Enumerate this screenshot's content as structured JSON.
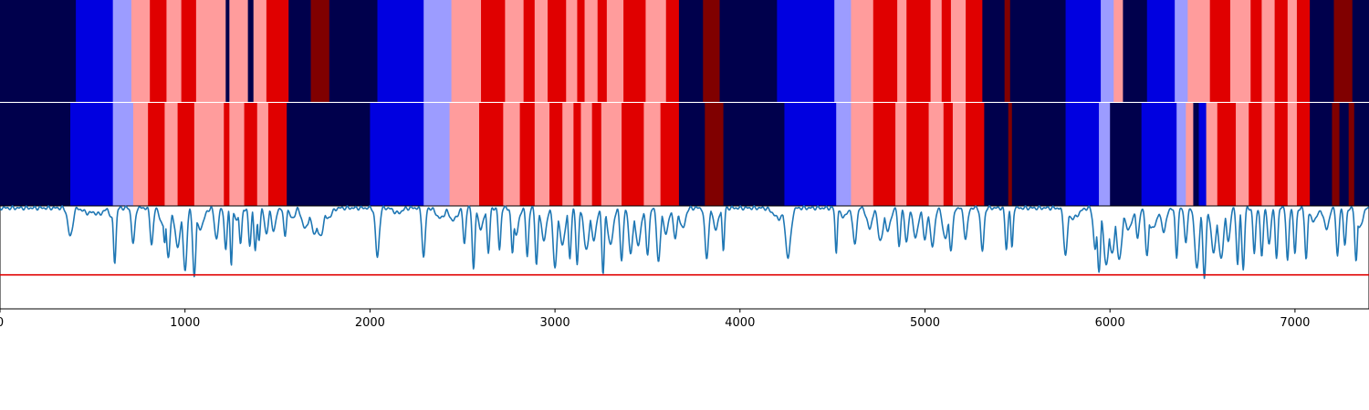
{
  "chart_data": [
    {
      "type": "heatmap",
      "title": "",
      "xlim": [
        0,
        7400
      ],
      "palette": [
        "#00004c",
        "#0000e0",
        "#9c9cff",
        "#ff9c9c",
        "#e00000",
        "#800000"
      ],
      "segments": [
        [
          0,
          410,
          0
        ],
        [
          410,
          610,
          1
        ],
        [
          610,
          710,
          2
        ],
        [
          710,
          810,
          3
        ],
        [
          810,
          900,
          4
        ],
        [
          900,
          980,
          3
        ],
        [
          980,
          1060,
          4
        ],
        [
          1060,
          1220,
          3
        ],
        [
          1220,
          1240,
          0
        ],
        [
          1240,
          1340,
          3
        ],
        [
          1340,
          1370,
          0
        ],
        [
          1370,
          1440,
          3
        ],
        [
          1440,
          1560,
          4
        ],
        [
          1560,
          1680,
          0
        ],
        [
          1680,
          1780,
          5
        ],
        [
          1780,
          2040,
          0
        ],
        [
          2040,
          2290,
          1
        ],
        [
          2290,
          2440,
          2
        ],
        [
          2440,
          2600,
          3
        ],
        [
          2600,
          2730,
          4
        ],
        [
          2730,
          2830,
          3
        ],
        [
          2830,
          2890,
          4
        ],
        [
          2890,
          2960,
          3
        ],
        [
          2960,
          3060,
          4
        ],
        [
          3060,
          3120,
          3
        ],
        [
          3120,
          3160,
          4
        ],
        [
          3160,
          3230,
          3
        ],
        [
          3230,
          3280,
          4
        ],
        [
          3280,
          3370,
          3
        ],
        [
          3370,
          3490,
          4
        ],
        [
          3490,
          3600,
          3
        ],
        [
          3600,
          3670,
          4
        ],
        [
          3670,
          3800,
          0
        ],
        [
          3800,
          3890,
          5
        ],
        [
          3890,
          4200,
          0
        ],
        [
          4200,
          4510,
          1
        ],
        [
          4510,
          4600,
          2
        ],
        [
          4600,
          4720,
          3
        ],
        [
          4720,
          4850,
          4
        ],
        [
          4850,
          4900,
          3
        ],
        [
          4900,
          5030,
          4
        ],
        [
          5030,
          5090,
          3
        ],
        [
          5090,
          5140,
          4
        ],
        [
          5140,
          5220,
          3
        ],
        [
          5220,
          5310,
          4
        ],
        [
          5310,
          5430,
          0
        ],
        [
          5430,
          5460,
          5
        ],
        [
          5460,
          5760,
          0
        ],
        [
          5760,
          5950,
          1
        ],
        [
          5950,
          6020,
          2
        ],
        [
          6020,
          6070,
          3
        ],
        [
          6070,
          6200,
          0
        ],
        [
          6200,
          6350,
          1
        ],
        [
          6350,
          6420,
          2
        ],
        [
          6420,
          6540,
          3
        ],
        [
          6540,
          6650,
          4
        ],
        [
          6650,
          6760,
          3
        ],
        [
          6760,
          6820,
          4
        ],
        [
          6820,
          6890,
          3
        ],
        [
          6890,
          6960,
          4
        ],
        [
          6960,
          7010,
          3
        ],
        [
          7010,
          7080,
          4
        ],
        [
          7080,
          7210,
          0
        ],
        [
          7210,
          7310,
          5
        ],
        [
          7310,
          7400,
          0
        ]
      ]
    },
    {
      "type": "heatmap",
      "title": "",
      "xlim": [
        0,
        7400
      ],
      "palette": [
        "#00004c",
        "#0000e0",
        "#9c9cff",
        "#ff9c9c",
        "#e00000",
        "#800000"
      ],
      "segments": [
        [
          0,
          380,
          0
        ],
        [
          380,
          610,
          1
        ],
        [
          610,
          720,
          2
        ],
        [
          720,
          800,
          3
        ],
        [
          800,
          890,
          4
        ],
        [
          890,
          960,
          3
        ],
        [
          960,
          1050,
          4
        ],
        [
          1050,
          1210,
          3
        ],
        [
          1210,
          1240,
          4
        ],
        [
          1240,
          1320,
          3
        ],
        [
          1320,
          1390,
          4
        ],
        [
          1390,
          1450,
          3
        ],
        [
          1450,
          1550,
          4
        ],
        [
          1550,
          2000,
          0
        ],
        [
          2000,
          2290,
          1
        ],
        [
          2290,
          2430,
          2
        ],
        [
          2430,
          2590,
          3
        ],
        [
          2590,
          2720,
          4
        ],
        [
          2720,
          2810,
          3
        ],
        [
          2810,
          2890,
          4
        ],
        [
          2890,
          2970,
          3
        ],
        [
          2970,
          3040,
          4
        ],
        [
          3040,
          3100,
          3
        ],
        [
          3100,
          3140,
          4
        ],
        [
          3140,
          3200,
          3
        ],
        [
          3200,
          3250,
          4
        ],
        [
          3250,
          3360,
          3
        ],
        [
          3360,
          3480,
          4
        ],
        [
          3480,
          3570,
          3
        ],
        [
          3570,
          3670,
          4
        ],
        [
          3670,
          3810,
          0
        ],
        [
          3810,
          3910,
          5
        ],
        [
          3910,
          4240,
          0
        ],
        [
          4240,
          4520,
          1
        ],
        [
          4520,
          4600,
          2
        ],
        [
          4600,
          4720,
          3
        ],
        [
          4720,
          4840,
          4
        ],
        [
          4840,
          4900,
          3
        ],
        [
          4900,
          5020,
          4
        ],
        [
          5020,
          5100,
          3
        ],
        [
          5100,
          5150,
          4
        ],
        [
          5150,
          5220,
          3
        ],
        [
          5220,
          5320,
          4
        ],
        [
          5320,
          5450,
          0
        ],
        [
          5450,
          5470,
          5
        ],
        [
          5470,
          5760,
          0
        ],
        [
          5760,
          5940,
          1
        ],
        [
          5940,
          6000,
          2
        ],
        [
          6000,
          6170,
          0
        ],
        [
          6170,
          6360,
          1
        ],
        [
          6360,
          6410,
          2
        ],
        [
          6410,
          6450,
          3
        ],
        [
          6450,
          6480,
          0
        ],
        [
          6480,
          6520,
          1
        ],
        [
          6520,
          6580,
          3
        ],
        [
          6580,
          6680,
          4
        ],
        [
          6680,
          6750,
          3
        ],
        [
          6750,
          6820,
          4
        ],
        [
          6820,
          6890,
          3
        ],
        [
          6890,
          6960,
          4
        ],
        [
          6960,
          7010,
          3
        ],
        [
          7010,
          7080,
          4
        ],
        [
          7080,
          7200,
          0
        ],
        [
          7200,
          7240,
          5
        ],
        [
          7240,
          7290,
          0
        ],
        [
          7290,
          7320,
          5
        ],
        [
          7320,
          7400,
          0
        ]
      ]
    },
    {
      "type": "line",
      "title": "",
      "xlabel": "",
      "ylabel": "",
      "xlim": [
        0,
        7400
      ],
      "ylim": [
        -0.8,
        0.2
      ],
      "x_ticks": [
        0,
        1000,
        2000,
        3000,
        4000,
        5000,
        6000,
        7000
      ],
      "x_tick_labels": [
        "0",
        "1000",
        "2000",
        "3000",
        "4000",
        "5000",
        "6000",
        "7000"
      ],
      "series": [
        {
          "color": "#1f77b4",
          "baseline": 0.2,
          "dips": [
            [
              380,
              0.28,
              18
            ],
            [
              480,
              0.05,
              40
            ],
            [
              530,
              0.06,
              40
            ],
            [
              610,
              0.12,
              20
            ],
            [
              620,
              0.53,
              10
            ],
            [
              720,
              0.35,
              12
            ],
            [
              820,
              0.35,
              12
            ],
            [
              880,
              0.18,
              20
            ],
            [
              890,
              0.33,
              10
            ],
            [
              910,
              0.48,
              14
            ],
            [
              960,
              0.38,
              20
            ],
            [
              1000,
              0.62,
              14
            ],
            [
              1050,
              0.66,
              12
            ],
            [
              1080,
              0.2,
              30
            ],
            [
              1170,
              0.3,
              14
            ],
            [
              1220,
              0.42,
              10
            ],
            [
              1250,
              0.55,
              8
            ],
            [
              1280,
              0.1,
              30
            ],
            [
              1300,
              0.35,
              10
            ],
            [
              1350,
              0.36,
              10
            ],
            [
              1380,
              0.42,
              10
            ],
            [
              1400,
              0.3,
              10
            ],
            [
              1440,
              0.25,
              14
            ],
            [
              1480,
              0.22,
              16
            ],
            [
              1540,
              0.28,
              10
            ],
            [
              1580,
              0.1,
              20
            ],
            [
              1650,
              0.2,
              25
            ],
            [
              1700,
              0.25,
              25
            ],
            [
              1730,
              0.28,
              25
            ],
            [
              1770,
              0.1,
              30
            ],
            [
              2040,
              0.48,
              14
            ],
            [
              2150,
              0.05,
              30
            ],
            [
              2290,
              0.48,
              12
            ],
            [
              2380,
              0.1,
              30
            ],
            [
              2450,
              0.12,
              30
            ],
            [
              2510,
              0.35,
              10
            ],
            [
              2560,
              0.6,
              10
            ],
            [
              2600,
              0.2,
              20
            ],
            [
              2640,
              0.44,
              10
            ],
            [
              2700,
              0.4,
              10
            ],
            [
              2770,
              0.44,
              10
            ],
            [
              2790,
              0.25,
              20
            ],
            [
              2850,
              0.48,
              10
            ],
            [
              2900,
              0.55,
              10
            ],
            [
              2940,
              0.3,
              20
            ],
            [
              3000,
              0.6,
              14
            ],
            [
              3040,
              0.36,
              20
            ],
            [
              3080,
              0.5,
              10
            ],
            [
              3120,
              0.56,
              10
            ],
            [
              3170,
              0.4,
              20
            ],
            [
              3210,
              0.3,
              20
            ],
            [
              3260,
              0.64,
              10
            ],
            [
              3300,
              0.36,
              20
            ],
            [
              3360,
              0.5,
              12
            ],
            [
              3410,
              0.44,
              16
            ],
            [
              3450,
              0.36,
              20
            ],
            [
              3500,
              0.46,
              12
            ],
            [
              3560,
              0.52,
              14
            ],
            [
              3600,
              0.24,
              20
            ],
            [
              3650,
              0.3,
              14
            ],
            [
              3690,
              0.2,
              20
            ],
            [
              3820,
              0.48,
              14
            ],
            [
              3870,
              0.2,
              20
            ],
            [
              3910,
              0.42,
              8
            ],
            [
              4210,
              0.1,
              40
            ],
            [
              4260,
              0.48,
              20
            ],
            [
              4520,
              0.44,
              8
            ],
            [
              4560,
              0.08,
              30
            ],
            [
              4620,
              0.36,
              14
            ],
            [
              4700,
              0.2,
              20
            ],
            [
              4760,
              0.32,
              20
            ],
            [
              4800,
              0.22,
              20
            ],
            [
              4860,
              0.38,
              10
            ],
            [
              4900,
              0.32,
              14
            ],
            [
              4950,
              0.28,
              20
            ],
            [
              5000,
              0.32,
              14
            ],
            [
              5040,
              0.38,
              16
            ],
            [
              5110,
              0.3,
              20
            ],
            [
              5140,
              0.4,
              14
            ],
            [
              5220,
              0.3,
              14
            ],
            [
              5310,
              0.42,
              12
            ],
            [
              5440,
              0.4,
              10
            ],
            [
              5470,
              0.4,
              8
            ],
            [
              5760,
              0.46,
              14
            ],
            [
              5800,
              0.1,
              40
            ],
            [
              5920,
              0.4,
              14
            ],
            [
              5940,
              0.62,
              12
            ],
            [
              5980,
              0.55,
              20
            ],
            [
              6010,
              0.45,
              20
            ],
            [
              6050,
              0.5,
              20
            ],
            [
              6100,
              0.2,
              30
            ],
            [
              6150,
              0.3,
              12
            ],
            [
              6200,
              0.48,
              12
            ],
            [
              6230,
              0.2,
              30
            ],
            [
              6290,
              0.22,
              20
            ],
            [
              6360,
              0.48,
              10
            ],
            [
              6410,
              0.32,
              12
            ],
            [
              6470,
              0.6,
              16
            ],
            [
              6510,
              0.68,
              12
            ],
            [
              6560,
              0.42,
              20
            ],
            [
              6600,
              0.48,
              20
            ],
            [
              6640,
              0.32,
              14
            ],
            [
              6690,
              0.56,
              10
            ],
            [
              6720,
              0.6,
              10
            ],
            [
              6780,
              0.44,
              10
            ],
            [
              6820,
              0.48,
              10
            ],
            [
              6860,
              0.36,
              12
            ],
            [
              6900,
              0.48,
              10
            ],
            [
              6960,
              0.52,
              10
            ],
            [
              7000,
              0.44,
              10
            ],
            [
              7060,
              0.5,
              10
            ],
            [
              7100,
              0.12,
              30
            ],
            [
              7170,
              0.2,
              20
            ],
            [
              7230,
              0.48,
              10
            ],
            [
              7270,
              0.36,
              10
            ],
            [
              7330,
              0.52,
              10
            ],
            [
              7350,
              0.2,
              20
            ]
          ]
        }
      ],
      "hlines": [
        {
          "y": -0.47,
          "color": "#e00000"
        }
      ]
    }
  ]
}
